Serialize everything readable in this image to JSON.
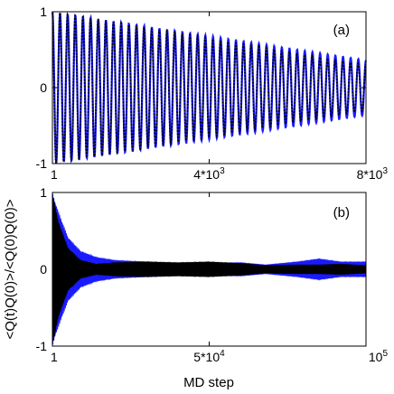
{
  "chart_data": [
    {
      "type": "line",
      "panel_label": "(a)",
      "xlabel": "",
      "ylabel": "",
      "xlim": [
        1,
        8000
      ],
      "ylim": [
        -1,
        1
      ],
      "xtick_labels": [
        {
          "value": 1,
          "base": "1",
          "exp": ""
        },
        {
          "value": 4000,
          "base": "4*10",
          "exp": "3"
        },
        {
          "value": 8000,
          "base": "8*10",
          "exp": "3"
        }
      ],
      "ytick_labels": [
        {
          "value": 1,
          "label": "1"
        },
        {
          "value": 0,
          "label": "0"
        },
        {
          "value": -1,
          "label": "-1"
        }
      ],
      "series": [
        {
          "color": "#1a1aff",
          "style": "solid",
          "envelope_start": 1.0,
          "envelope_end": 0.36,
          "cycles": 41
        },
        {
          "color": "#000000",
          "style": "dotted",
          "envelope_start": 1.0,
          "envelope_end": 0.3,
          "cycles": 41
        }
      ]
    },
    {
      "type": "line",
      "panel_label": "(b)",
      "xlabel": "MD step",
      "ylabel": "<Q(t)Q(0)>/<Q(0)Q(0)>",
      "xlim": [
        1,
        100000
      ],
      "ylim": [
        -1,
        1
      ],
      "xtick_labels": [
        {
          "value": 1,
          "base": "1",
          "exp": ""
        },
        {
          "value": 50000,
          "base": "5*10",
          "exp": "4"
        },
        {
          "value": 100000,
          "base": "10",
          "exp": "5"
        }
      ],
      "ytick_labels": [
        {
          "value": 1,
          "label": "1"
        },
        {
          "value": 0,
          "label": "0"
        },
        {
          "value": -1,
          "label": "-1"
        }
      ],
      "series": [
        {
          "color": "#1a1aff",
          "envelope": [
            [
              1,
              1.0
            ],
            [
              2000,
              0.75
            ],
            [
              5000,
              0.42
            ],
            [
              9000,
              0.24
            ],
            [
              14000,
              0.16
            ],
            [
              20000,
              0.12
            ],
            [
              30000,
              0.1
            ],
            [
              40000,
              0.08
            ],
            [
              50000,
              0.08
            ],
            [
              60000,
              0.09
            ],
            [
              68000,
              0.06
            ],
            [
              78000,
              0.1
            ],
            [
              85000,
              0.14
            ],
            [
              92000,
              0.1
            ],
            [
              100000,
              0.1
            ]
          ]
        },
        {
          "color": "#000000",
          "envelope": [
            [
              1,
              1.0
            ],
            [
              2000,
              0.62
            ],
            [
              5000,
              0.28
            ],
            [
              9000,
              0.12
            ],
            [
              14000,
              0.07
            ],
            [
              20000,
              0.09
            ],
            [
              30000,
              0.1
            ],
            [
              40000,
              0.09
            ],
            [
              50000,
              0.1
            ],
            [
              60000,
              0.08
            ],
            [
              68000,
              0.05
            ],
            [
              78000,
              0.06
            ],
            [
              85000,
              0.06
            ],
            [
              92000,
              0.07
            ],
            [
              100000,
              0.05
            ]
          ]
        }
      ]
    }
  ]
}
